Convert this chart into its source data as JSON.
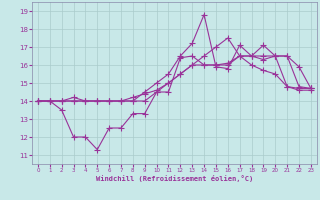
{
  "background_color": "#c8e8e8",
  "grid_color": "#aacccc",
  "line_color": "#993399",
  "marker": "+",
  "markersize": 4,
  "linewidth": 0.8,
  "xlabel": "Windchill (Refroidissement éolien,°C)",
  "xlim": [
    -0.5,
    23.5
  ],
  "ylim": [
    10.5,
    19.5
  ],
  "xticks": [
    0,
    1,
    2,
    3,
    4,
    5,
    6,
    7,
    8,
    9,
    10,
    11,
    12,
    13,
    14,
    15,
    16,
    17,
    18,
    19,
    20,
    21,
    22,
    23
  ],
  "yticks": [
    11,
    12,
    13,
    14,
    15,
    16,
    17,
    18,
    19
  ],
  "series": [
    [
      14.0,
      14.0,
      13.5,
      12.0,
      12.0,
      11.3,
      12.5,
      12.5,
      13.3,
      13.3,
      14.5,
      14.5,
      16.4,
      16.5,
      16.0,
      16.0,
      16.0,
      16.5,
      16.5,
      16.5,
      16.5,
      14.8,
      14.7,
      14.7
    ],
    [
      14.0,
      14.0,
      14.0,
      14.2,
      14.0,
      14.0,
      14.0,
      14.0,
      14.2,
      14.4,
      14.6,
      15.0,
      15.5,
      16.0,
      16.0,
      16.0,
      16.1,
      16.5,
      16.5,
      16.3,
      16.5,
      16.5,
      14.8,
      14.7
    ],
    [
      14.0,
      14.0,
      14.0,
      14.0,
      14.0,
      14.0,
      14.0,
      14.0,
      14.0,
      14.5,
      15.0,
      15.5,
      16.5,
      17.2,
      18.8,
      15.9,
      15.8,
      17.1,
      16.5,
      17.1,
      16.5,
      16.5,
      15.9,
      14.7
    ],
    [
      14.0,
      14.0,
      14.0,
      14.0,
      14.0,
      14.0,
      14.0,
      14.0,
      14.0,
      14.0,
      14.5,
      15.0,
      15.5,
      16.0,
      16.5,
      17.0,
      17.5,
      16.5,
      16.0,
      15.7,
      15.5,
      14.8,
      14.6,
      14.6
    ]
  ]
}
